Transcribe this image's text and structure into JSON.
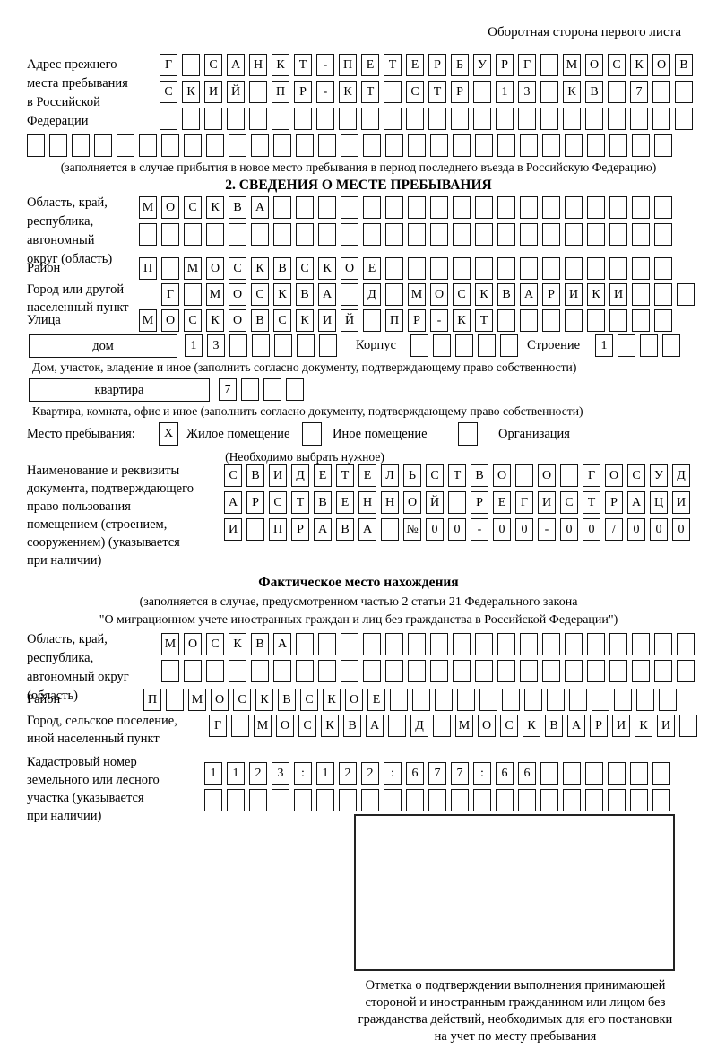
{
  "page": {
    "top_note": "Оборотная сторона первого листа"
  },
  "prev_address": {
    "label": "Адрес прежнего\nместа пребывания\nв Российской\nФедерации",
    "rows": [
      {
        "len": 24,
        "text": "Г САНКТ-ПЕТЕРБУРГ МОСКОВ"
      },
      {
        "len": 24,
        "text": "СКИЙ ПР-КТ СТР 13 КВ 7"
      },
      {
        "len": 24,
        "text": ""
      },
      {
        "len": 29,
        "text": ""
      }
    ],
    "caption": "(заполняется в случае прибытия в новое место пребывания в период последнего въезда в Российскую Федерацию)"
  },
  "section2": {
    "title": "2. СВЕДЕНИЯ О МЕСТЕ ПРЕБЫВАНИЯ",
    "region": {
      "label": "Область, край,\nреспублика,\nавтономный\nокруг (область)",
      "rows": [
        {
          "len": 24,
          "text": "МОСКВА"
        },
        {
          "len": 24,
          "text": ""
        }
      ]
    },
    "district": {
      "label": "Район",
      "row": {
        "len": 24,
        "text": "П МОСКВСКОЕ"
      }
    },
    "city": {
      "label": "Город или другой\nнаселенный пункт",
      "row": {
        "len": 24,
        "text": "Г МОСКВА Д МОСКВАРИКИ"
      }
    },
    "street": {
      "label": "Улица",
      "row": {
        "len": 24,
        "text": "МОСКОВСКИЙ ПР-КТ"
      }
    },
    "house": {
      "box_label": "дом",
      "row": {
        "len": 7,
        "text": "13"
      },
      "korpus_label": "Корпус",
      "korpus_row": {
        "len": 5,
        "text": ""
      },
      "stroenie_label": "Строение",
      "stroenie_row": {
        "len": 4,
        "text": "1"
      },
      "caption": "Дом, участок, владение и иное (заполнить согласно документу, подтверждающему право собственности)"
    },
    "apartment": {
      "box_label": "квартира",
      "row": {
        "len": 4,
        "text": "7"
      },
      "caption": "Квартира, комната, офис и иное (заполнить согласно документу, подтверждающему право собственности)"
    },
    "stay_type": {
      "label": "Место пребывания:",
      "options": [
        {
          "checked": "X",
          "label": "Жилое помещение"
        },
        {
          "checked": "",
          "label": "Иное помещение"
        },
        {
          "checked": "",
          "label": "Организация"
        }
      ],
      "note": "(Необходимо выбрать нужное)"
    },
    "doc": {
      "label": "Наименование и реквизиты\nдокумента, подтверждающего\nправо пользования\nпомещением (строением,\nсооружением) (указывается\nпри наличии)",
      "rows": [
        {
          "len": 21,
          "text": "СВИДЕТЕЛЬСТВО О ГОСУД"
        },
        {
          "len": 21,
          "text": "АРСТВЕННОЙ РЕГИСТРАЦИ"
        },
        {
          "len": 21,
          "text": "И ПРАВА №00-00-00/000"
        }
      ]
    }
  },
  "actual_location": {
    "title": "Фактическое место нахождения",
    "note1": "(заполняется в случае, предусмотренном частью 2 статьи 21 Федерального закона",
    "note2": "\"О миграционном учете иностранных граждан и лиц без гражданства в Российской Федерации\")",
    "region": {
      "label": "Область, край,\nреспублика,\nавтономный округ\n(область)",
      "rows": [
        {
          "len": 24,
          "text": "МОСКВА"
        },
        {
          "len": 24,
          "text": ""
        }
      ]
    },
    "district": {
      "label": "Район",
      "row": {
        "len": 24,
        "text": "П МОСКВСКОЕ"
      }
    },
    "city": {
      "label": "Город, сельское поселение,\nиной населенный пункт",
      "row": {
        "len": 22,
        "text": "Г МОСКВА Д МОСКВАРИКИ"
      }
    },
    "cadastral": {
      "label": "Кадастровый номер\nземельного или лесного\nучастка (указывается\nпри наличии)",
      "rows": [
        {
          "len": 21,
          "text": "1123:122:677:66"
        },
        {
          "len": 21,
          "text": ""
        }
      ]
    },
    "stamp_caption": "Отметка о подтверждении выполнения принимающей\nстороной и иностранным гражданином или лицом без\nгражданства действий, необходимых для его постановки\nна учет по месту пребывания"
  }
}
